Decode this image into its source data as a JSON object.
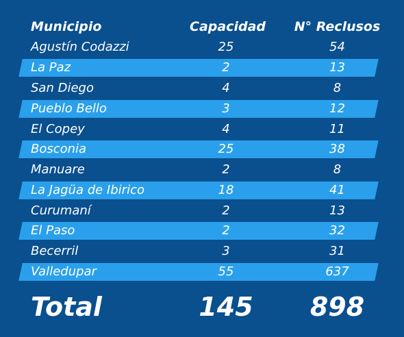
{
  "headers": {
    "municipio": "Municipio",
    "capacidad": "Capacidad",
    "reclusos": "N° Reclusos"
  },
  "rows": [
    {
      "municipio": "Agustín Codazzi",
      "capacidad": "25",
      "reclusos": "54"
    },
    {
      "municipio": "La Paz",
      "capacidad": "2",
      "reclusos": "13"
    },
    {
      "municipio": "San Diego",
      "capacidad": "4",
      "reclusos": "8"
    },
    {
      "municipio": "Pueblo Bello",
      "capacidad": "3",
      "reclusos": "12"
    },
    {
      "municipio": "El Copey",
      "capacidad": "4",
      "reclusos": "11"
    },
    {
      "municipio": "Bosconia",
      "capacidad": "25",
      "reclusos": "38"
    },
    {
      "municipio": "Manuare",
      "capacidad": "2",
      "reclusos": "8"
    },
    {
      "municipio": "La Jagüa de Ibirico",
      "capacidad": "18",
      "reclusos": "41"
    },
    {
      "municipio": "Curumaní",
      "capacidad": "2",
      "reclusos": "13"
    },
    {
      "municipio": "El Paso",
      "capacidad": "2",
      "reclusos": "32"
    },
    {
      "municipio": "Becerril",
      "capacidad": "3",
      "reclusos": "31"
    },
    {
      "municipio": "Valledupar",
      "capacidad": "55",
      "reclusos": "637"
    }
  ],
  "total": {
    "label": "Total",
    "capacidad": "145",
    "reclusos": "898"
  },
  "colors": {
    "background": "#0a4f8e",
    "stripe": "#2aa0ec",
    "text": "#ffffff"
  }
}
